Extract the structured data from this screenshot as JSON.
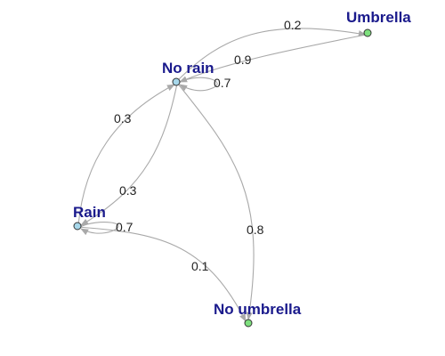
{
  "colors": {
    "state_node": "#a7d7ea",
    "observation_node": "#7ee07e",
    "label": "#1a1a8c",
    "edge": "#a9a9a9"
  },
  "nodes": [
    {
      "id": "no_rain",
      "label": "No rain",
      "kind": "state"
    },
    {
      "id": "rain",
      "label": "Rain",
      "kind": "state"
    },
    {
      "id": "umbrella",
      "label": "Umbrella",
      "kind": "observation"
    },
    {
      "id": "no_umbrella",
      "label": "No umbrella",
      "kind": "observation"
    }
  ],
  "edges": [
    {
      "from": "no_rain",
      "to": "umbrella",
      "weight": "0.2"
    },
    {
      "from": "umbrella",
      "to": "no_rain",
      "weight": "0.9"
    },
    {
      "from": "no_rain",
      "to": "no_rain",
      "weight": "0.7"
    },
    {
      "from": "rain",
      "to": "no_rain",
      "weight": "0.3"
    },
    {
      "from": "no_rain",
      "to": "rain",
      "weight": "0.3"
    },
    {
      "from": "rain",
      "to": "rain",
      "weight": "0.7"
    },
    {
      "from": "rain",
      "to": "no_umbrella",
      "weight": "0.1"
    },
    {
      "from": "no_rain",
      "to": "no_umbrella",
      "weight": "0.8"
    }
  ]
}
